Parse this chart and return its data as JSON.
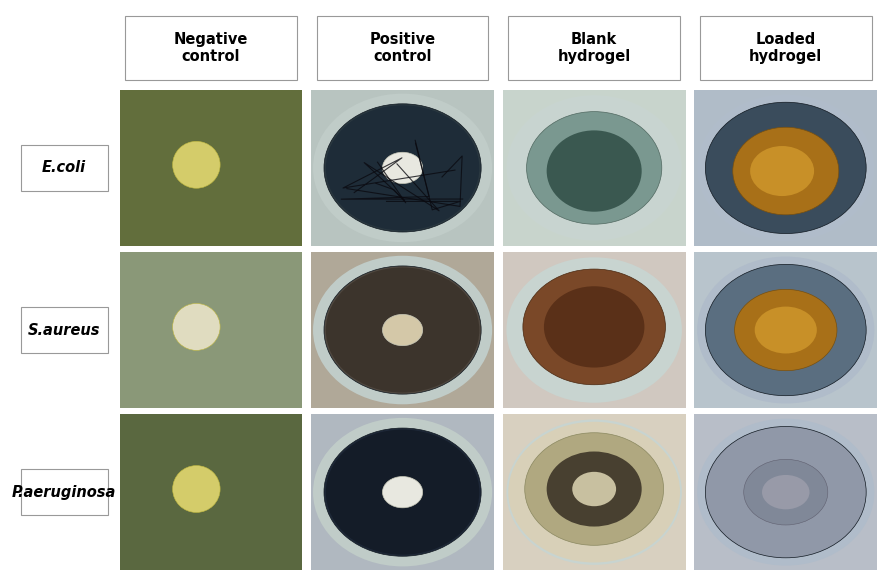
{
  "col_headers": [
    "Negative\ncontrol",
    "Positive\ncontrol",
    "Blank\nhydrogel",
    "Loaded\nhydrogel"
  ],
  "row_labels": [
    "E.coli",
    "S.aureus",
    "P.aeruginosa"
  ],
  "background_color": "#ffffff",
  "label_box_edgecolor": "#999999",
  "header_box_edgecolor": "#999999",
  "header_fontsize": 10.5,
  "label_fontsize": 10.5,
  "figsize": [
    8.86,
    5.79
  ],
  "dpi": 100,
  "cell_bg": [
    [
      "#626e3c",
      "#b8c4c0",
      "#c8d4cc",
      "#b0bcc8"
    ],
    [
      "#8a9878",
      "#b0a898",
      "#d0c8c0",
      "#b8c4cc"
    ],
    [
      "#5a6840",
      "#b0b8c0",
      "#d8d0c0",
      "#b8bec8"
    ]
  ],
  "zone_outer_color": [
    [
      "#626e3c",
      "#2a3840",
      "#9ab0a8",
      "#3a4c5c"
    ],
    [
      "#8a9878",
      "#504840",
      "#885030",
      "#5a6e80"
    ],
    [
      "#5a6840",
      "#1e2838",
      "#c0b898",
      "#9098a8"
    ]
  ],
  "zone_inner_color": [
    [
      "#626e3c",
      "#1e2c38",
      "#6a8880",
      "#283848"
    ],
    [
      "#8a9878",
      "#3c342c",
      "#7a4428",
      "#485a6c"
    ],
    [
      "#5a6840",
      "#141c28",
      "#b0a880",
      "#808898"
    ]
  ],
  "disk_color": [
    [
      "#d4cc6a",
      "#e8e8e0",
      "#e8e8e0",
      "#e8e8e0"
    ],
    [
      "#e0dcc0",
      "#d4c8a8",
      "#d4c8a8",
      "#d4c8a8"
    ],
    [
      "#d4cc6a",
      "#e8e8e0",
      "#e8e8e0",
      "#e8e8e0"
    ]
  ],
  "gel_color": [
    [
      null,
      null,
      "#5a7068",
      "#9a7818"
    ],
    [
      null,
      null,
      "#884828",
      "#9a7818"
    ],
    [
      null,
      null,
      "#a89868",
      "#787878"
    ]
  ]
}
